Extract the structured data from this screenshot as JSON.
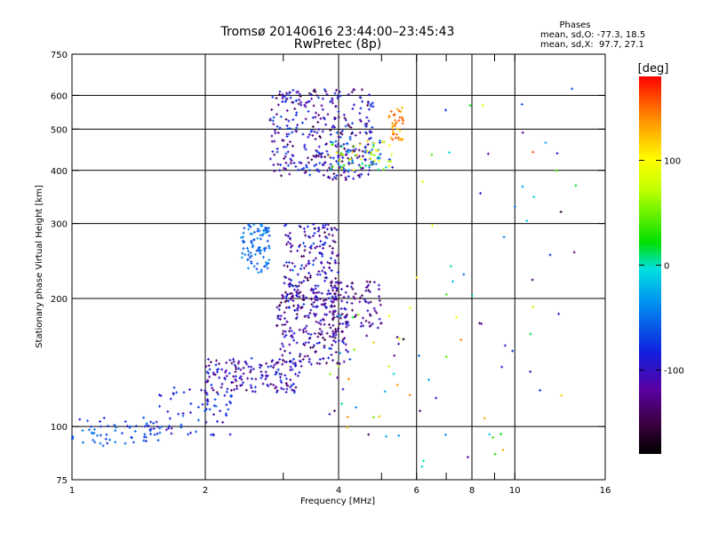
{
  "chart_data": {
    "type": "scatter",
    "title": "Tromsø 20140616 23:44:00–23:45:43",
    "subtitle": "RwPretec (8p)",
    "xlabel": "Frequency [MHz]",
    "ylabel": "Stationary phase Virtual Height [km]",
    "x_scale": "log",
    "y_scale": "log",
    "xlim": [
      1,
      16
    ],
    "ylim": [
      75,
      750
    ],
    "x_ticks": [
      1,
      2,
      4,
      6,
      8,
      10,
      16
    ],
    "x_tick_labels": [
      "1",
      "2",
      "4",
      "6",
      "8",
      "10",
      "16"
    ],
    "x_minor_ticks": [
      3,
      5,
      7,
      9
    ],
    "y_ticks": [
      75,
      100,
      200,
      300,
      400,
      500,
      600,
      750
    ],
    "y_tick_labels": [
      "75",
      "100",
      "200",
      "300",
      "400",
      "500",
      "600",
      "750"
    ],
    "y_grid": [
      100,
      200,
      300,
      400,
      500,
      600
    ],
    "x_grid": [
      2,
      4,
      6,
      8,
      10
    ],
    "grid": true,
    "legend_block": {
      "heading": "Phases",
      "line1": "mean, sd,O: -77.3, 18.5",
      "line2": "mean, sd,X:  97.7, 27.1"
    },
    "colorbar": {
      "label": "[deg]",
      "range": [
        -180,
        180
      ],
      "ticks": [
        100,
        0,
        -100
      ],
      "tick_labels": [
        "100",
        "0",
        "-100"
      ]
    },
    "point_clusters": [
      {
        "x": [
          1.0,
          1.6
        ],
        "y": [
          90,
          105
        ],
        "phase": [
          -90,
          -40
        ],
        "n": 60
      },
      {
        "x": [
          1.5,
          2.3
        ],
        "y": [
          95,
          125
        ],
        "phase": [
          -110,
          -50
        ],
        "n": 70
      },
      {
        "x": [
          2.0,
          3.3
        ],
        "y": [
          120,
          145
        ],
        "phase": [
          -140,
          -70
        ],
        "n": 160
      },
      {
        "x": [
          2.9,
          4.2
        ],
        "y": [
          140,
          210
        ],
        "phase": [
          -150,
          -80
        ],
        "n": 220
      },
      {
        "x": [
          3.0,
          4.0
        ],
        "y": [
          190,
          300
        ],
        "phase": [
          -150,
          -60
        ],
        "n": 200
      },
      {
        "x": [
          3.8,
          5.0
        ],
        "y": [
          170,
          220
        ],
        "phase": [
          -150,
          -90
        ],
        "n": 90
      },
      {
        "x": [
          2.4,
          2.8
        ],
        "y": [
          230,
          300
        ],
        "phase": [
          -70,
          -30
        ],
        "n": 90
      },
      {
        "x": [
          2.8,
          4.8
        ],
        "y": [
          380,
          620
        ],
        "phase": [
          -150,
          -60
        ],
        "n": 350
      },
      {
        "x": [
          3.8,
          5.3
        ],
        "y": [
          400,
          470
        ],
        "phase": [
          -90,
          140
        ],
        "n": 90
      },
      {
        "x": [
          5.2,
          5.6
        ],
        "y": [
          470,
          570
        ],
        "phase": [
          120,
          160
        ],
        "n": 40
      },
      {
        "x": [
          3.8,
          5.8
        ],
        "y": [
          90,
          200
        ],
        "phase": [
          -180,
          160
        ],
        "n": 40
      },
      {
        "x": [
          6.0,
          14.0
        ],
        "y": [
          80,
          640
        ],
        "phase": [
          -160,
          160
        ],
        "n": 60
      }
    ]
  }
}
